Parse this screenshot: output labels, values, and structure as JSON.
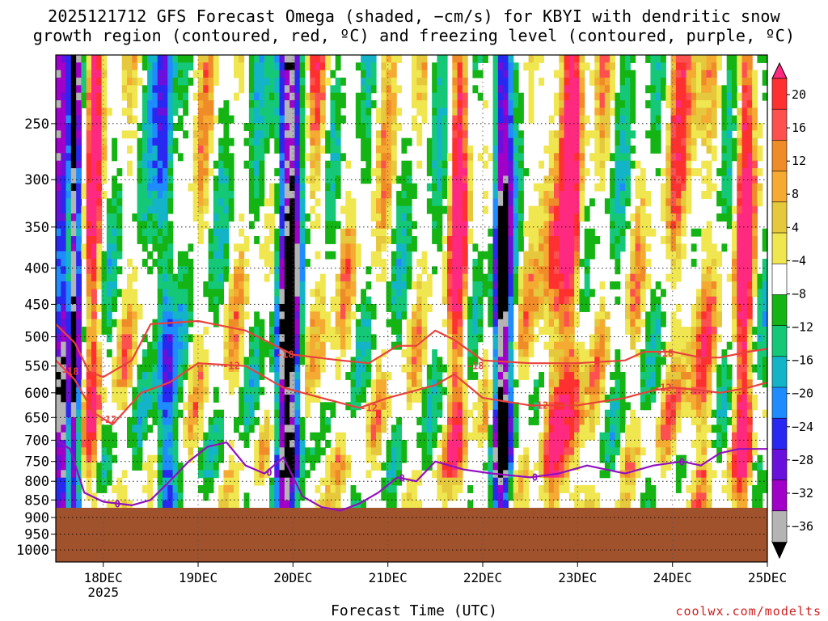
{
  "title_line1": "2025121712 GFS Forecast Omega (shaded, −cm/s) for KBYI with dendritic snow",
  "title_line2": "growth region (contoured, red, ºC) and freezing level (contoured, purple, ºC)",
  "xlabel": "Forecast Time (UTC)",
  "credit": "coolwx.com/modelts",
  "colors": {
    "ground": "#a0522d",
    "dgz_contour": "#e8413c",
    "freezing_contour": "#9010c0"
  },
  "chart_data": {
    "type": "heatmap",
    "title": "2025121712 GFS Forecast Omega (shaded, −cm/s) for KBYI with dendritic snow growth region (contoured, red, ºC) and freezing level (contoured, purple, ºC)",
    "xlabel": "Forecast Time (UTC)",
    "ylabel": "",
    "x_ticks": [
      {
        "t": 0.5,
        "label": "18DEC",
        "sub": "2025"
      },
      {
        "t": 1.5,
        "label": "19DEC"
      },
      {
        "t": 2.5,
        "label": "20DEC"
      },
      {
        "t": 3.5,
        "label": "21DEC"
      },
      {
        "t": 4.5,
        "label": "22DEC"
      },
      {
        "t": 5.5,
        "label": "23DEC"
      },
      {
        "t": 6.5,
        "label": "24DEC"
      },
      {
        "t": 7.5,
        "label": "25DEC"
      }
    ],
    "xlim": [
      0,
      7.5
    ],
    "y_scale": "log-pressure",
    "y_ticks": [
      250,
      300,
      350,
      400,
      450,
      500,
      550,
      600,
      650,
      700,
      750,
      800,
      850,
      900,
      950,
      1000
    ],
    "ylim": [
      1040,
      200
    ],
    "grid": true,
    "surface_pressure_hpa": 872,
    "colorbar": {
      "labels": [
        "20",
        "16",
        "12",
        "8",
        "4",
        "−4",
        "−8",
        "−12",
        "−16",
        "−20",
        "−24",
        "−28",
        "−32",
        "−36"
      ],
      "colors": [
        "#ff2a7f",
        "#ff3030",
        "#ff5050",
        "#f08c28",
        "#f5aa32",
        "#e6c83c",
        "#f0e650",
        "#ffffff",
        "#14b414",
        "#14c878",
        "#14b4c8",
        "#1e8cff",
        "#2828f0",
        "#6a10dc",
        "#a000c8",
        "#b4b4b4",
        "#000000"
      ]
    },
    "omega_bands": [
      {
        "t": 0.05,
        "w": 0.06,
        "value": -36
      },
      {
        "t": 0.2,
        "w": 0.06,
        "value": -32
      },
      {
        "t": 0.4,
        "w": 0.08,
        "value": 14
      },
      {
        "t": 1.15,
        "w": 0.1,
        "value": -24
      },
      {
        "t": 2.45,
        "w": 0.14,
        "value": -36
      },
      {
        "t": 2.8,
        "w": 0.1,
        "value": 8
      },
      {
        "t": 4.25,
        "w": 0.1,
        "value": 16
      },
      {
        "t": 4.7,
        "w": 0.1,
        "value": -36
      },
      {
        "t": 5.2,
        "w": 0.12,
        "value": 14
      },
      {
        "t": 5.45,
        "w": 0.12,
        "value": 18
      },
      {
        "t": 6.7,
        "w": 0.2,
        "value": 10
      },
      {
        "t": 7.25,
        "w": 0.1,
        "value": 18
      }
    ],
    "series": [
      {
        "name": "-18",
        "x": [
          0.0,
          0.2,
          0.35,
          0.5,
          0.8,
          1.0,
          1.5,
          2.0,
          2.5,
          3.0,
          3.3,
          3.6,
          3.8,
          4.0,
          4.2,
          4.5,
          5.0,
          5.5,
          6.0,
          6.2,
          6.5,
          6.8,
          7.0,
          7.3,
          7.5
        ],
        "y": [
          480,
          510,
          560,
          570,
          540,
          480,
          475,
          490,
          530,
          540,
          545,
          515,
          515,
          490,
          505,
          540,
          545,
          545,
          540,
          525,
          525,
          535,
          535,
          525,
          520
        ]
      },
      {
        "name": "-12",
        "x": [
          0.0,
          0.2,
          0.4,
          0.6,
          0.9,
          1.2,
          1.5,
          2.0,
          2.4,
          2.8,
          3.2,
          3.5,
          3.7,
          4.0,
          4.2,
          4.5,
          5.0,
          5.5,
          6.0,
          6.3,
          6.5,
          6.8,
          7.0,
          7.3,
          7.5
        ],
        "y": [
          540,
          575,
          640,
          665,
          600,
          580,
          545,
          550,
          590,
          610,
          630,
          610,
          600,
          585,
          565,
          610,
          625,
          625,
          610,
          595,
          590,
          595,
          600,
          590,
          580
        ]
      },
      {
        "name": "0",
        "x": [
          0.0,
          0.15,
          0.3,
          0.5,
          0.8,
          1.0,
          1.2,
          1.4,
          1.6,
          1.8,
          2.0,
          2.2,
          2.4,
          2.6,
          2.8,
          3.0,
          3.2,
          3.4,
          3.6,
          3.8,
          4.0,
          4.3,
          4.6,
          5.0,
          5.3,
          5.6,
          6.0,
          6.3,
          6.6,
          6.8,
          7.0,
          7.2,
          7.5
        ],
        "y": [
          700,
          720,
          830,
          855,
          865,
          850,
          800,
          750,
          715,
          705,
          760,
          780,
          740,
          840,
          870,
          880,
          860,
          830,
          790,
          800,
          750,
          770,
          780,
          790,
          780,
          760,
          780,
          760,
          750,
          760,
          730,
          720,
          720
        ]
      }
    ],
    "contour_labels": [
      {
        "series": "-18",
        "t": 0.15,
        "p": 560,
        "text": "-18"
      },
      {
        "series": "-18",
        "t": 2.42,
        "p": 530,
        "text": "-18"
      },
      {
        "series": "-18",
        "t": 4.42,
        "p": 550,
        "text": "-18"
      },
      {
        "series": "-18",
        "t": 6.42,
        "p": 528,
        "text": "-18"
      },
      {
        "series": "-12",
        "t": 0.55,
        "p": 655,
        "text": "-12"
      },
      {
        "series": "-12",
        "t": 1.85,
        "p": 550,
        "text": "-12"
      },
      {
        "series": "-12",
        "t": 3.3,
        "p": 630,
        "text": "-12"
      },
      {
        "series": "-12",
        "t": 5.1,
        "p": 625,
        "text": "-12"
      },
      {
        "series": "-12",
        "t": 6.4,
        "p": 590,
        "text": "-12"
      },
      {
        "series": "0",
        "t": 0.65,
        "p": 862,
        "text": "0"
      },
      {
        "series": "0",
        "t": 2.25,
        "p": 778,
        "text": "0"
      },
      {
        "series": "0",
        "t": 3.65,
        "p": 792,
        "text": "0"
      },
      {
        "series": "0",
        "t": 5.05,
        "p": 790,
        "text": "0"
      },
      {
        "series": "0",
        "t": 6.6,
        "p": 752,
        "text": "0"
      }
    ]
  }
}
